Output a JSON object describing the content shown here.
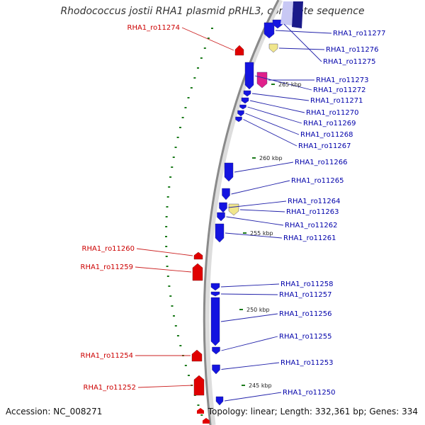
{
  "title": "Rhodococcus jostii RHA1 plasmid pRHL3, complete sequence",
  "accession": "Accession: NC_008271",
  "summary": "Topology: linear; Length: 332,361 bp; Genes: 334",
  "colors": {
    "forward": "#1414e0",
    "reverse": "#e00000",
    "label_forward": "#0000aa",
    "label_reverse": "#cc0000",
    "pseudo": "#f0e68c",
    "rna": "#e0208a",
    "gc": "#1a7a1a"
  },
  "ticks": [
    {
      "label": "265 kbp"
    },
    {
      "label": "260 kbp"
    },
    {
      "label": "255 kbp"
    },
    {
      "label": "250 kbp"
    },
    {
      "label": "245 kbp"
    }
  ],
  "genes_forward": [
    {
      "name": "RHA1_ro11277"
    },
    {
      "name": "RHA1_ro11276"
    },
    {
      "name": "RHA1_ro11275"
    },
    {
      "name": "RHA1_ro11273"
    },
    {
      "name": "RHA1_ro11272"
    },
    {
      "name": "RHA1_ro11271"
    },
    {
      "name": "RHA1_ro11270"
    },
    {
      "name": "RHA1_ro11269"
    },
    {
      "name": "RHA1_ro11268"
    },
    {
      "name": "RHA1_ro11267"
    },
    {
      "name": "RHA1_ro11266"
    },
    {
      "name": "RHA1_ro11265"
    },
    {
      "name": "RHA1_ro11264"
    },
    {
      "name": "RHA1_ro11263"
    },
    {
      "name": "RHA1_ro11262"
    },
    {
      "name": "RHA1_ro11261"
    },
    {
      "name": "RHA1_ro11258"
    },
    {
      "name": "RHA1_ro11257"
    },
    {
      "name": "RHA1_ro11256"
    },
    {
      "name": "RHA1_ro11255"
    },
    {
      "name": "RHA1_ro11253"
    },
    {
      "name": "RHA1_ro11250"
    }
  ],
  "genes_reverse": [
    {
      "name": "RHA1_ro11274"
    },
    {
      "name": "RHA1_ro11260"
    },
    {
      "name": "RHA1_ro11259"
    },
    {
      "name": "RHA1_ro11254"
    },
    {
      "name": "RHA1_ro11252"
    }
  ]
}
